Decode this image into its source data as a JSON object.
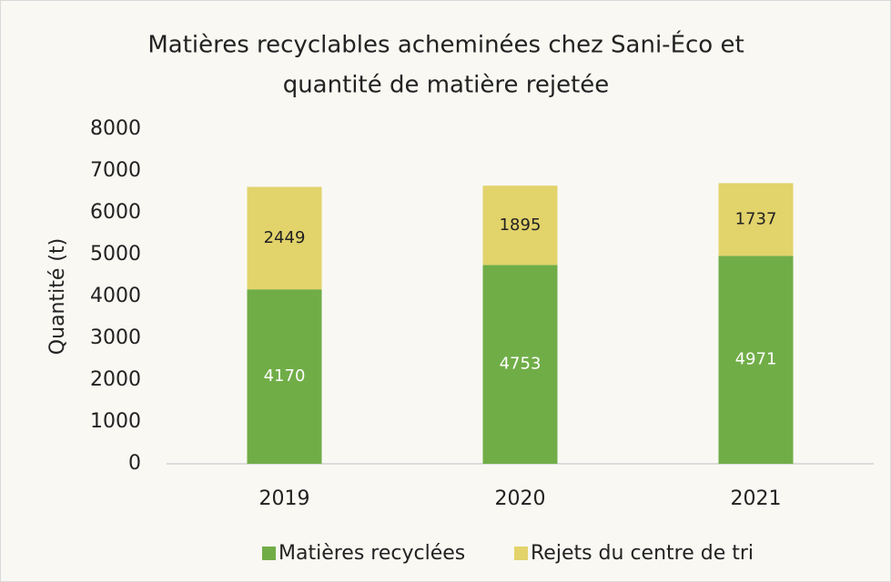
{
  "chart_data": {
    "type": "stacked_bar",
    "title": [
      "Matières recyclables acheminées chez Sani-Éco et",
      "quantité de matière rejetée"
    ],
    "y_label": "Quantité (t)",
    "categories": [
      "2019",
      "2020",
      "2021"
    ],
    "series": [
      {
        "name": "Matières recyclées",
        "color": "#70ad47",
        "label_color": "#ffffff",
        "values": [
          4170,
          4753,
          4971
        ]
      },
      {
        "name": "Rejets du centre de tri",
        "color": "#e2d36b",
        "label_color": "#222222",
        "values": [
          2449,
          1895,
          1737
        ]
      }
    ],
    "ylim": [
      0,
      8000
    ],
    "yticks": [
      0,
      1000,
      2000,
      3000,
      4000,
      5000,
      6000,
      7000,
      8000
    ],
    "grid": false,
    "legend": "bottom"
  }
}
